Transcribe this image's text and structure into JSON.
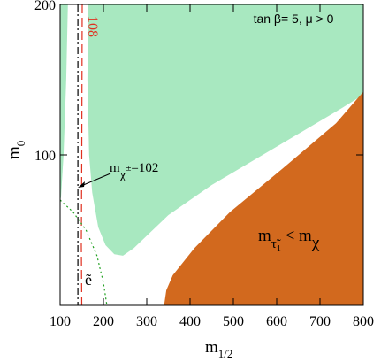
{
  "chart_data": {
    "type": "region",
    "xlim": [
      100,
      800
    ],
    "ylim": [
      0,
      200
    ],
    "xticks": [
      100,
      200,
      300,
      400,
      500,
      600,
      700,
      800
    ],
    "yticks": [
      100,
      200
    ],
    "x_label": [
      "m",
      "1/2"
    ],
    "y_label": [
      "m",
      "0"
    ],
    "regions": [
      {
        "color": "#a8e8c0",
        "x": [
          100,
          118,
          114,
          108,
          102,
          100
        ],
        "y": [
          200,
          200,
          150,
          100,
          72,
          70
        ]
      },
      {
        "color": "#a8e8c0",
        "x": [
          165,
          163,
          167,
          174,
          188,
          205,
          225,
          245,
          270,
          350,
          450,
          550,
          650,
          750,
          800,
          800
        ],
        "y": [
          200,
          150,
          100,
          75,
          52,
          40,
          34,
          33,
          38,
          60,
          80,
          97,
          114,
          131,
          140,
          200
        ]
      },
      {
        "color": "#d2691e",
        "x": [
          340,
          345,
          360,
          410,
          492,
          614,
          737,
          800,
          800
        ],
        "y": [
          0,
          10,
          20,
          38,
          62,
          91,
          121,
          142,
          0
        ]
      }
    ],
    "curves": [
      {
        "color": "#000000",
        "dash": "8 3 2 3",
        "x": [
          141,
          141
        ],
        "y": [
          200,
          0
        ]
      },
      {
        "color": "#e03020",
        "dash": "10 5",
        "x": [
          151,
          150,
          149,
          150
        ],
        "y": [
          200,
          100,
          40,
          0
        ]
      },
      {
        "color": "#20a020",
        "dash": "2 3",
        "x": [
          100,
          130,
          160,
          185,
          200,
          208
        ],
        "y": [
          70,
          62,
          50,
          33,
          15,
          0
        ]
      }
    ],
    "annotations": {
      "tan_beta": "tan β= 5,  μ > 0",
      "higgs": "108",
      "chargino": [
        "m",
        "χ",
        "±",
        "=102"
      ],
      "stau": [
        "m",
        "τ̃",
        "1",
        " < m",
        "χ"
      ],
      "selectron": "ẽ"
    }
  }
}
